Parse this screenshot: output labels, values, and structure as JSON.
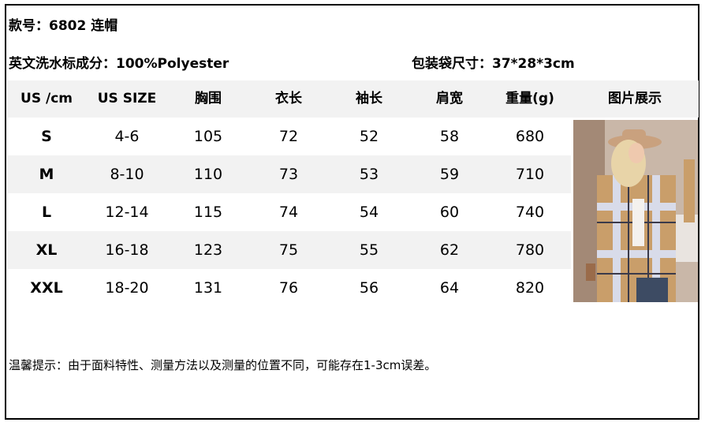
{
  "style_no": "款号：6802 连帽",
  "fabric": "英文洗水标成分：100%Polyester",
  "bag_size": "包装袋尺寸：37*28*3cm",
  "table": {
    "headers": [
      "US /cm",
      "US SIZE",
      "胸围",
      "衣长",
      "袖长",
      "肩宽",
      "重量(g)",
      "图片展示"
    ],
    "rows": [
      [
        "S",
        "4-6",
        "105",
        "72",
        "52",
        "58",
        "680"
      ],
      [
        "M",
        "8-10",
        "110",
        "73",
        "53",
        "59",
        "710"
      ],
      [
        "L",
        "12-14",
        "115",
        "74",
        "54",
        "60",
        "740"
      ],
      [
        "XL",
        "16-18",
        "123",
        "75",
        "55",
        "62",
        "780"
      ],
      [
        "XXL",
        "18-20",
        "131",
        "76",
        "56",
        "64",
        "820"
      ]
    ]
  },
  "note": "温馨提示：由于面料特性、测量方法以及测量的位置不同，可能存在1-3cm误差。",
  "colors": {
    "header_bg": "#f2f2f2",
    "stripe_bg": "#f2f2f2"
  }
}
